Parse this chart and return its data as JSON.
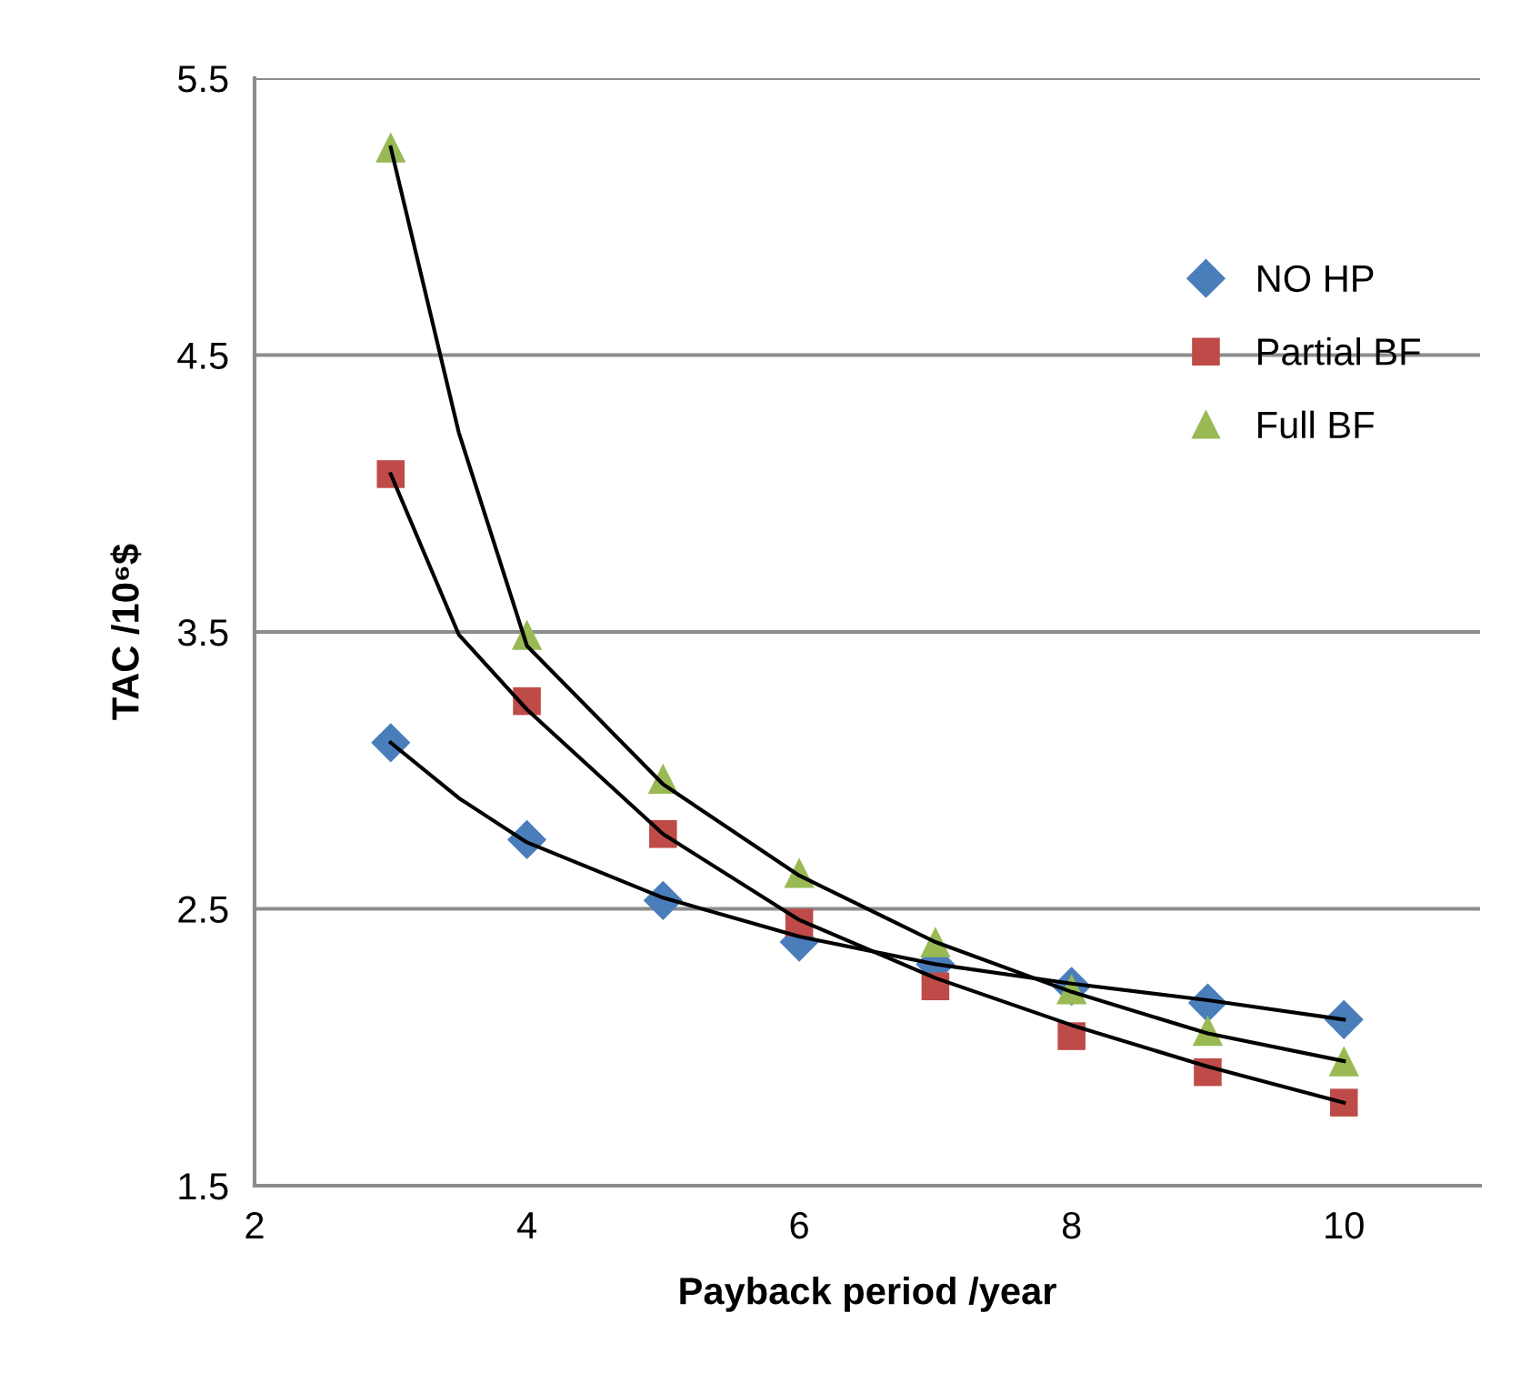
{
  "chart_data": {
    "type": "scatter",
    "xlabel": "Payback period /year",
    "ylabel": "TAC /10⁶$",
    "xlim": [
      2,
      11
    ],
    "xticks": [
      2,
      4,
      6,
      8,
      10
    ],
    "ylim": [
      1.5,
      5.5
    ],
    "yticks": [
      1.5,
      2.5,
      3.5,
      4.5,
      5.5
    ],
    "grid": "y",
    "legend": "right",
    "x": [
      3,
      4,
      5,
      6,
      7,
      8,
      9,
      10
    ],
    "series": [
      {
        "name": "NO HP",
        "color": "#4a7ebb",
        "marker": "diamond",
        "values": [
          3.1,
          2.75,
          2.53,
          2.38,
          2.3,
          2.22,
          2.16,
          2.1
        ]
      },
      {
        "name": "Partial BF",
        "color": "#be4b48",
        "marker": "square",
        "values": [
          4.07,
          3.25,
          2.77,
          2.45,
          2.22,
          2.04,
          1.91,
          1.8
        ]
      },
      {
        "name": "Full BF",
        "color": "#98b954",
        "marker": "triangle",
        "values": [
          5.25,
          3.49,
          2.97,
          2.63,
          2.38,
          2.21,
          2.06,
          1.95
        ]
      },
      {
        "type": "line",
        "color": "#000000",
        "marker": "none",
        "x": [
          3,
          3.5,
          4,
          5,
          6,
          7,
          8,
          9,
          10
        ],
        "values": [
          3.1,
          2.9,
          2.74,
          2.54,
          2.4,
          2.3,
          2.23,
          2.17,
          2.1
        ]
      },
      {
        "type": "line",
        "color": "#000000",
        "marker": "none",
        "x": [
          3,
          3.5,
          4,
          5,
          6,
          7,
          8,
          9,
          10
        ],
        "values": [
          4.07,
          3.49,
          3.22,
          2.77,
          2.46,
          2.25,
          2.08,
          1.93,
          1.8
        ]
      },
      {
        "type": "line",
        "color": "#000000",
        "marker": "none",
        "x": [
          3,
          3.5,
          4,
          5,
          6,
          7,
          8,
          9,
          10
        ],
        "values": [
          5.25,
          4.22,
          3.45,
          2.95,
          2.62,
          2.38,
          2.2,
          2.05,
          1.95
        ]
      }
    ]
  }
}
